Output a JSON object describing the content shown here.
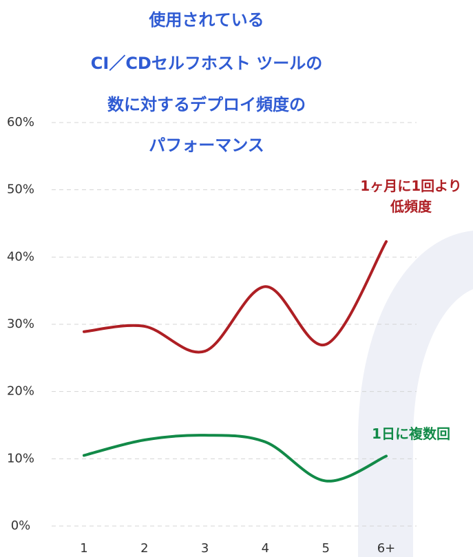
{
  "chart_data": {
    "type": "line",
    "title": [
      "使用されている",
      "CI／CDセルフホスト ツールの",
      "数に対するデプロイ頻度の",
      "パフォーマンス"
    ],
    "categories": [
      "1",
      "2",
      "3",
      "4",
      "5",
      "6+"
    ],
    "series": [
      {
        "name": "1ヶ月に1回より低頻度",
        "color": "#ae1f24",
        "values": [
          28.9,
          29.7,
          26.0,
          35.6,
          27.0,
          42.3
        ]
      },
      {
        "name": "1日に複数回",
        "color": "#128a48",
        "values": [
          10.5,
          12.8,
          13.5,
          12.5,
          6.7,
          10.4
        ]
      }
    ],
    "ylim": [
      0,
      60
    ],
    "yticks": [
      {
        "value": 0,
        "label": "0%"
      },
      {
        "value": 10,
        "label": "10%"
      },
      {
        "value": 20,
        "label": "20%"
      },
      {
        "value": 30,
        "label": "30%"
      },
      {
        "value": 40,
        "label": "40%"
      },
      {
        "value": 50,
        "label": "50%"
      },
      {
        "value": 60,
        "label": "60%"
      }
    ],
    "grid": true
  }
}
